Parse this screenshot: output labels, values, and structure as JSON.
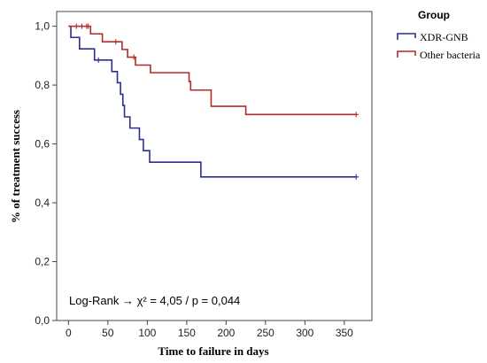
{
  "chart_data": {
    "type": "line",
    "subtype": "kaplan-meier step curve",
    "xlabel": "Time to failure in days",
    "ylabel": "% of treatment success",
    "xlim": [
      -15,
      385
    ],
    "ylim": [
      0,
      1.05
    ],
    "x_ticks": [
      0,
      50,
      100,
      150,
      200,
      250,
      300,
      350
    ],
    "y_ticks": [
      0.0,
      0.2,
      0.4,
      0.6,
      0.8,
      1.0
    ],
    "y_tick_labels": [
      "0,0",
      "0,2",
      "0,4",
      "0,6",
      "0,8",
      "1,0"
    ],
    "grid": false,
    "legend_title": "Group",
    "legend_position": "top-right, outside plot",
    "annotation": "Log-Rank → χ² = 4,05 / p = 0,044",
    "series": [
      {
        "name": "XDR-GNB",
        "color": "#2b2f8f",
        "steps": [
          [
            0,
            1.0
          ],
          [
            3,
            0.962
          ],
          [
            14,
            0.923
          ],
          [
            33,
            0.885
          ],
          [
            55,
            0.846
          ],
          [
            62,
            0.808
          ],
          [
            66,
            0.769
          ],
          [
            69,
            0.731
          ],
          [
            71,
            0.692
          ],
          [
            78,
            0.654
          ],
          [
            90,
            0.615
          ],
          [
            95,
            0.577
          ],
          [
            103,
            0.538
          ],
          [
            168,
            0.488
          ],
          [
            365,
            0.488
          ]
        ],
        "censored": [
          [
            38,
            0.885
          ],
          [
            365,
            0.488
          ]
        ]
      },
      {
        "name": "Other bacteria",
        "color": "#b52a2a",
        "steps": [
          [
            0,
            1.0
          ],
          [
            28,
            0.974
          ],
          [
            43,
            0.947
          ],
          [
            68,
            0.921
          ],
          [
            75,
            0.895
          ],
          [
            85,
            0.868
          ],
          [
            104,
            0.842
          ],
          [
            153,
            0.812
          ],
          [
            155,
            0.783
          ],
          [
            181,
            0.728
          ],
          [
            225,
            0.7
          ],
          [
            365,
            0.7
          ]
        ],
        "censored": [
          [
            10,
            1.0
          ],
          [
            17,
            1.0
          ],
          [
            23,
            1.0
          ],
          [
            25,
            1.0
          ],
          [
            60,
            0.947
          ],
          [
            83,
            0.895
          ],
          [
            365,
            0.7
          ]
        ]
      }
    ]
  }
}
